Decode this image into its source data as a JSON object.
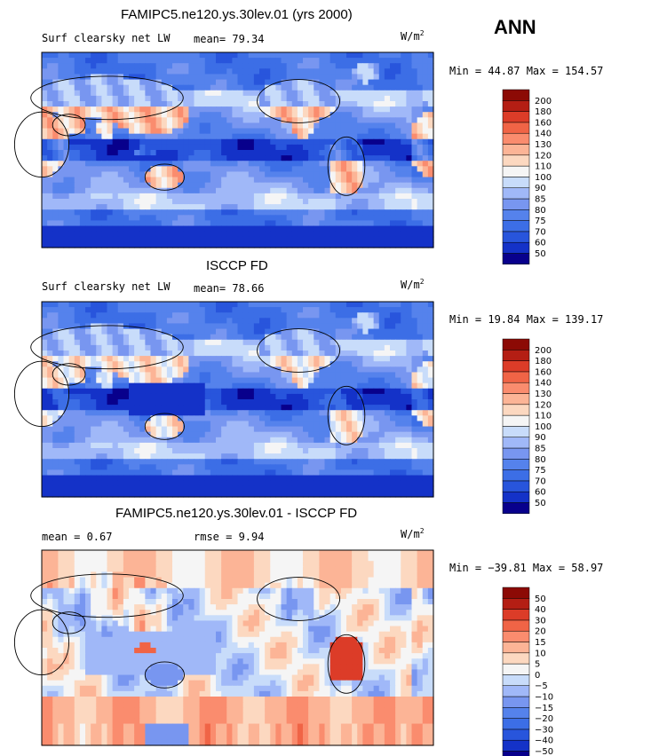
{
  "season": "ANN",
  "panels": [
    {
      "title": "FAMIPC5.ne120.ys.30lev.01 (yrs 2000)",
      "variable": "Surf clearsky net LW",
      "stat1": "mean=  79.34",
      "stat2": "",
      "units_base": "W/m",
      "units_exp": "2",
      "minmax": "Min =  44.87 Max = 154.57",
      "levels": [
        "50",
        "60",
        "70",
        "75",
        "80",
        "85",
        "90",
        "100",
        "110",
        "120",
        "130",
        "140",
        "160",
        "180",
        "200"
      ],
      "colors": [
        "#08008c",
        "#1432c8",
        "#2855dc",
        "#3c6ee6",
        "#5582ec",
        "#7896f0",
        "#a0b8f8",
        "#c8dcfa",
        "#f5f5f5",
        "#fcd8c0",
        "#fcb496",
        "#fa8c6e",
        "#f06446",
        "#dc3c28",
        "#b41e14",
        "#8c0a05"
      ],
      "field": "model"
    },
    {
      "title": "ISCCP FD",
      "variable": "Surf clearsky net LW",
      "stat1": "mean=  78.66",
      "stat2": "",
      "units_base": "W/m",
      "units_exp": "2",
      "minmax": "Min =  19.84 Max = 139.17",
      "levels": [
        "50",
        "60",
        "70",
        "75",
        "80",
        "85",
        "90",
        "100",
        "110",
        "120",
        "130",
        "140",
        "160",
        "180",
        "200"
      ],
      "colors": [
        "#08008c",
        "#1432c8",
        "#2855dc",
        "#3c6ee6",
        "#5582ec",
        "#7896f0",
        "#a0b8f8",
        "#c8dcfa",
        "#f5f5f5",
        "#fcd8c0",
        "#fcb496",
        "#fa8c6e",
        "#f06446",
        "#dc3c28",
        "#b41e14",
        "#8c0a05"
      ],
      "field": "obs"
    },
    {
      "title": "FAMIPC5.ne120.ys.30lev.01 - ISCCP FD",
      "variable": "",
      "stat1": "mean =   0.67",
      "stat2": "rmse =   9.94",
      "units_base": "W/m",
      "units_exp": "2",
      "minmax": "Min = −39.81 Max =  58.97",
      "levels": [
        "−50",
        "−40",
        "−30",
        "−20",
        "−15",
        "−10",
        "−5",
        "0",
        "5",
        "10",
        "15",
        "20",
        "30",
        "40",
        "50"
      ],
      "colors": [
        "#08008c",
        "#1432c8",
        "#2855dc",
        "#3c6ee6",
        "#5582ec",
        "#7896f0",
        "#a0b8f8",
        "#c8dcfa",
        "#f5f5f5",
        "#fcd8c0",
        "#fcb496",
        "#fa8c6e",
        "#f06446",
        "#dc3c28",
        "#b41e14",
        "#8c0a05"
      ],
      "field": "diff"
    }
  ],
  "chart_data": {
    "type": "heatmap",
    "projection": "global cylindrical equidistant, Pacific-centered",
    "grid": "off",
    "legend_placement": "right",
    "fields": [
      {
        "name": "FAMIPC5.ne120.ys.30lev.01 (yrs 2000)",
        "mean": 79.34,
        "min": 44.87,
        "max": 154.57
      },
      {
        "name": "ISCCP FD",
        "mean": 78.66,
        "min": 19.84,
        "max": 139.17
      },
      {
        "name": "FAMIPC5.ne120.ys.30lev.01 - ISCCP FD",
        "mean": 0.67,
        "rmse": 9.94,
        "min": -39.81,
        "max": 58.97
      }
    ]
  }
}
